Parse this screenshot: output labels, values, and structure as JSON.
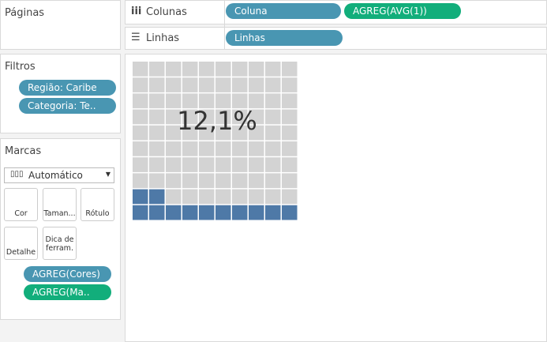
{
  "sidebar": {
    "pages": {
      "title": "Páginas"
    },
    "filters": {
      "title": "Filtros",
      "pills": [
        "Região: Caribe",
        "Categoria: Te.."
      ]
    },
    "marks": {
      "title": "Marcas",
      "dropdown": "Automático",
      "buttons": [
        "Cor",
        "Taman...",
        "Rótulo",
        "Detalhe",
        "Dica de ferram."
      ],
      "pills": [
        "AGREG(Cores)",
        "AGREG(Ma.."
      ]
    }
  },
  "shelves": {
    "columns": {
      "label": "Colunas",
      "pills": [
        "Coluna",
        "AGREG(AVG(1))"
      ]
    },
    "rows": {
      "label": "Linhas",
      "pills": [
        "Linhas"
      ]
    }
  },
  "waffle": {
    "label": "12,1%",
    "value": 12.1,
    "filled_color": "#4e79a7",
    "empty_color": "#d3d3d3"
  }
}
